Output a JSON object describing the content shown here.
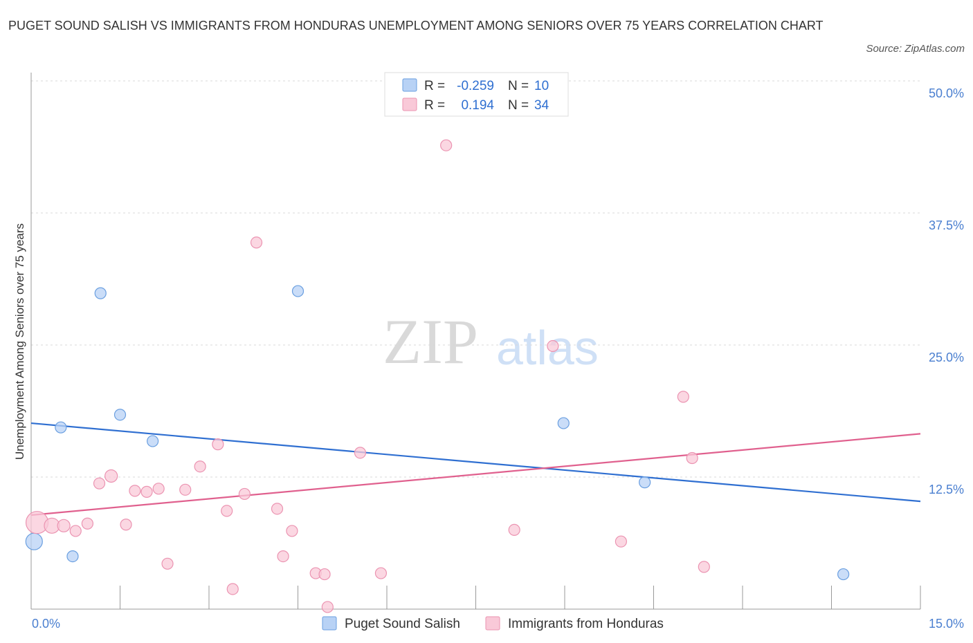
{
  "title": "PUGET SOUND SALISH VS IMMIGRANTS FROM HONDURAS UNEMPLOYMENT AMONG SENIORS OVER 75 YEARS CORRELATION CHART",
  "source": "Source: ZipAtlas.com",
  "watermark": {
    "zip": "ZIP",
    "atlas": "atlas"
  },
  "colors": {
    "blue_fill": "#b8d2f5",
    "blue_stroke": "#6a9fe0",
    "blue_line": "#2f6fd1",
    "pink_fill": "#f9c9d8",
    "pink_stroke": "#eb93b1",
    "pink_line": "#e0608e",
    "grid": "#d8d8d8",
    "tick_text": "#4a7fd0"
  },
  "legend": {
    "rows": [
      {
        "r_label": "R =",
        "r_value": "-0.259",
        "n_label": "N =",
        "n_value": "10"
      },
      {
        "r_label": "R =",
        "r_value": "0.194",
        "n_label": "N =",
        "n_value": "34"
      }
    ]
  },
  "chart_data": {
    "type": "scatter",
    "title": "PUGET SOUND SALISH VS IMMIGRANTS FROM HONDURAS UNEMPLOYMENT AMONG SENIORS OVER 75 YEARS CORRELATION CHART",
    "xlabel": "",
    "ylabel": "Unemployment Among Seniors over 75 years",
    "xlim": [
      0,
      15
    ],
    "ylim": [
      0,
      50
    ],
    "x_tick_labels": [
      "0.0%",
      "15.0%"
    ],
    "y_ticks": [
      12.5,
      25.0,
      37.5,
      50.0
    ],
    "y_tick_labels": [
      "12.5%",
      "25.0%",
      "37.5%",
      "50.0%"
    ],
    "grid": true,
    "series": [
      {
        "name": "Puget Sound Salish",
        "color": "#6a9fe0",
        "R": -0.259,
        "N": 10,
        "points": [
          {
            "x": 0.05,
            "y": 6.4,
            "s": 12
          },
          {
            "x": 0.5,
            "y": 17.2,
            "s": 8
          },
          {
            "x": 0.7,
            "y": 5.0,
            "s": 8
          },
          {
            "x": 1.17,
            "y": 29.9,
            "s": 8
          },
          {
            "x": 1.5,
            "y": 18.4,
            "s": 8
          },
          {
            "x": 2.05,
            "y": 15.9,
            "s": 8
          },
          {
            "x": 4.5,
            "y": 30.1,
            "s": 8
          },
          {
            "x": 8.98,
            "y": 17.6,
            "s": 8
          },
          {
            "x": 10.35,
            "y": 12.0,
            "s": 8
          },
          {
            "x": 13.7,
            "y": 3.3,
            "s": 8
          }
        ],
        "trend": {
          "x": [
            0,
            15
          ],
          "y": [
            17.6,
            10.2
          ]
        }
      },
      {
        "name": "Immigrants from Honduras",
        "color": "#eb93b1",
        "R": 0.194,
        "N": 34,
        "points": [
          {
            "x": 0.1,
            "y": 8.2,
            "s": 16
          },
          {
            "x": 0.35,
            "y": 7.9,
            "s": 11
          },
          {
            "x": 0.55,
            "y": 7.9,
            "s": 9
          },
          {
            "x": 0.75,
            "y": 7.4,
            "s": 8
          },
          {
            "x": 0.95,
            "y": 8.1,
            "s": 8
          },
          {
            "x": 1.15,
            "y": 11.9,
            "s": 8
          },
          {
            "x": 1.35,
            "y": 12.6,
            "s": 9
          },
          {
            "x": 1.6,
            "y": 8.0,
            "s": 8
          },
          {
            "x": 1.75,
            "y": 11.2,
            "s": 8
          },
          {
            "x": 1.95,
            "y": 11.1,
            "s": 8
          },
          {
            "x": 2.15,
            "y": 11.4,
            "s": 8
          },
          {
            "x": 2.3,
            "y": 4.3,
            "s": 8
          },
          {
            "x": 2.6,
            "y": 11.3,
            "s": 8
          },
          {
            "x": 2.85,
            "y": 13.5,
            "s": 8
          },
          {
            "x": 3.15,
            "y": 15.6,
            "s": 8
          },
          {
            "x": 3.3,
            "y": 9.3,
            "s": 8
          },
          {
            "x": 3.4,
            "y": 1.9,
            "s": 8
          },
          {
            "x": 3.6,
            "y": 10.9,
            "s": 8
          },
          {
            "x": 3.8,
            "y": 34.7,
            "s": 8
          },
          {
            "x": 4.15,
            "y": 9.5,
            "s": 8
          },
          {
            "x": 4.25,
            "y": 5.0,
            "s": 8
          },
          {
            "x": 4.4,
            "y": 7.4,
            "s": 8
          },
          {
            "x": 4.8,
            "y": 3.4,
            "s": 8
          },
          {
            "x": 4.95,
            "y": 3.3,
            "s": 8
          },
          {
            "x": 5.0,
            "y": 0.2,
            "s": 8
          },
          {
            "x": 5.55,
            "y": 14.8,
            "s": 8
          },
          {
            "x": 5.9,
            "y": 3.4,
            "s": 8
          },
          {
            "x": 7.0,
            "y": 43.9,
            "s": 8
          },
          {
            "x": 8.15,
            "y": 7.5,
            "s": 8
          },
          {
            "x": 8.8,
            "y": 24.9,
            "s": 8
          },
          {
            "x": 9.95,
            "y": 6.4,
            "s": 8
          },
          {
            "x": 11.0,
            "y": 20.1,
            "s": 8
          },
          {
            "x": 11.15,
            "y": 14.3,
            "s": 8
          },
          {
            "x": 11.35,
            "y": 4.0,
            "s": 8
          }
        ],
        "trend": {
          "x": [
            0,
            15
          ],
          "y": [
            8.9,
            16.6
          ]
        }
      }
    ]
  }
}
